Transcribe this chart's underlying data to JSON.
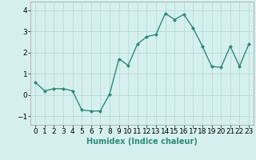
{
  "x": [
    0,
    1,
    2,
    3,
    4,
    5,
    6,
    7,
    8,
    9,
    10,
    11,
    12,
    13,
    14,
    15,
    16,
    17,
    18,
    19,
    20,
    21,
    22,
    23
  ],
  "y": [
    0.6,
    0.2,
    0.3,
    0.3,
    0.2,
    -0.7,
    -0.75,
    -0.75,
    0.05,
    1.7,
    1.4,
    2.4,
    2.75,
    2.85,
    3.85,
    3.55,
    3.8,
    3.15,
    2.3,
    1.35,
    1.3,
    2.3,
    1.35,
    2.4
  ],
  "line_color": "#2e8b7a",
  "marker": "D",
  "marker_size": 2,
  "line_width": 1.0,
  "bg_color": "#d6f0f0",
  "grid_color": "#b8dada",
  "xlabel": "Humidex (Indice chaleur)",
  "xlim": [
    -0.5,
    23.5
  ],
  "ylim": [
    -1.4,
    4.4
  ],
  "yticks": [
    -1,
    0,
    1,
    2,
    3,
    4
  ],
  "xticks": [
    0,
    1,
    2,
    3,
    4,
    5,
    6,
    7,
    8,
    9,
    10,
    11,
    12,
    13,
    14,
    15,
    16,
    17,
    18,
    19,
    20,
    21,
    22,
    23
  ],
  "xtick_labels": [
    "0",
    "1",
    "2",
    "3",
    "4",
    "5",
    "6",
    "7",
    "8",
    "9",
    "10",
    "11",
    "12",
    "13",
    "14",
    "15",
    "16",
    "17",
    "18",
    "19",
    "20",
    "21",
    "22",
    "23"
  ],
  "xlabel_fontsize": 7,
  "tick_fontsize": 6.5
}
